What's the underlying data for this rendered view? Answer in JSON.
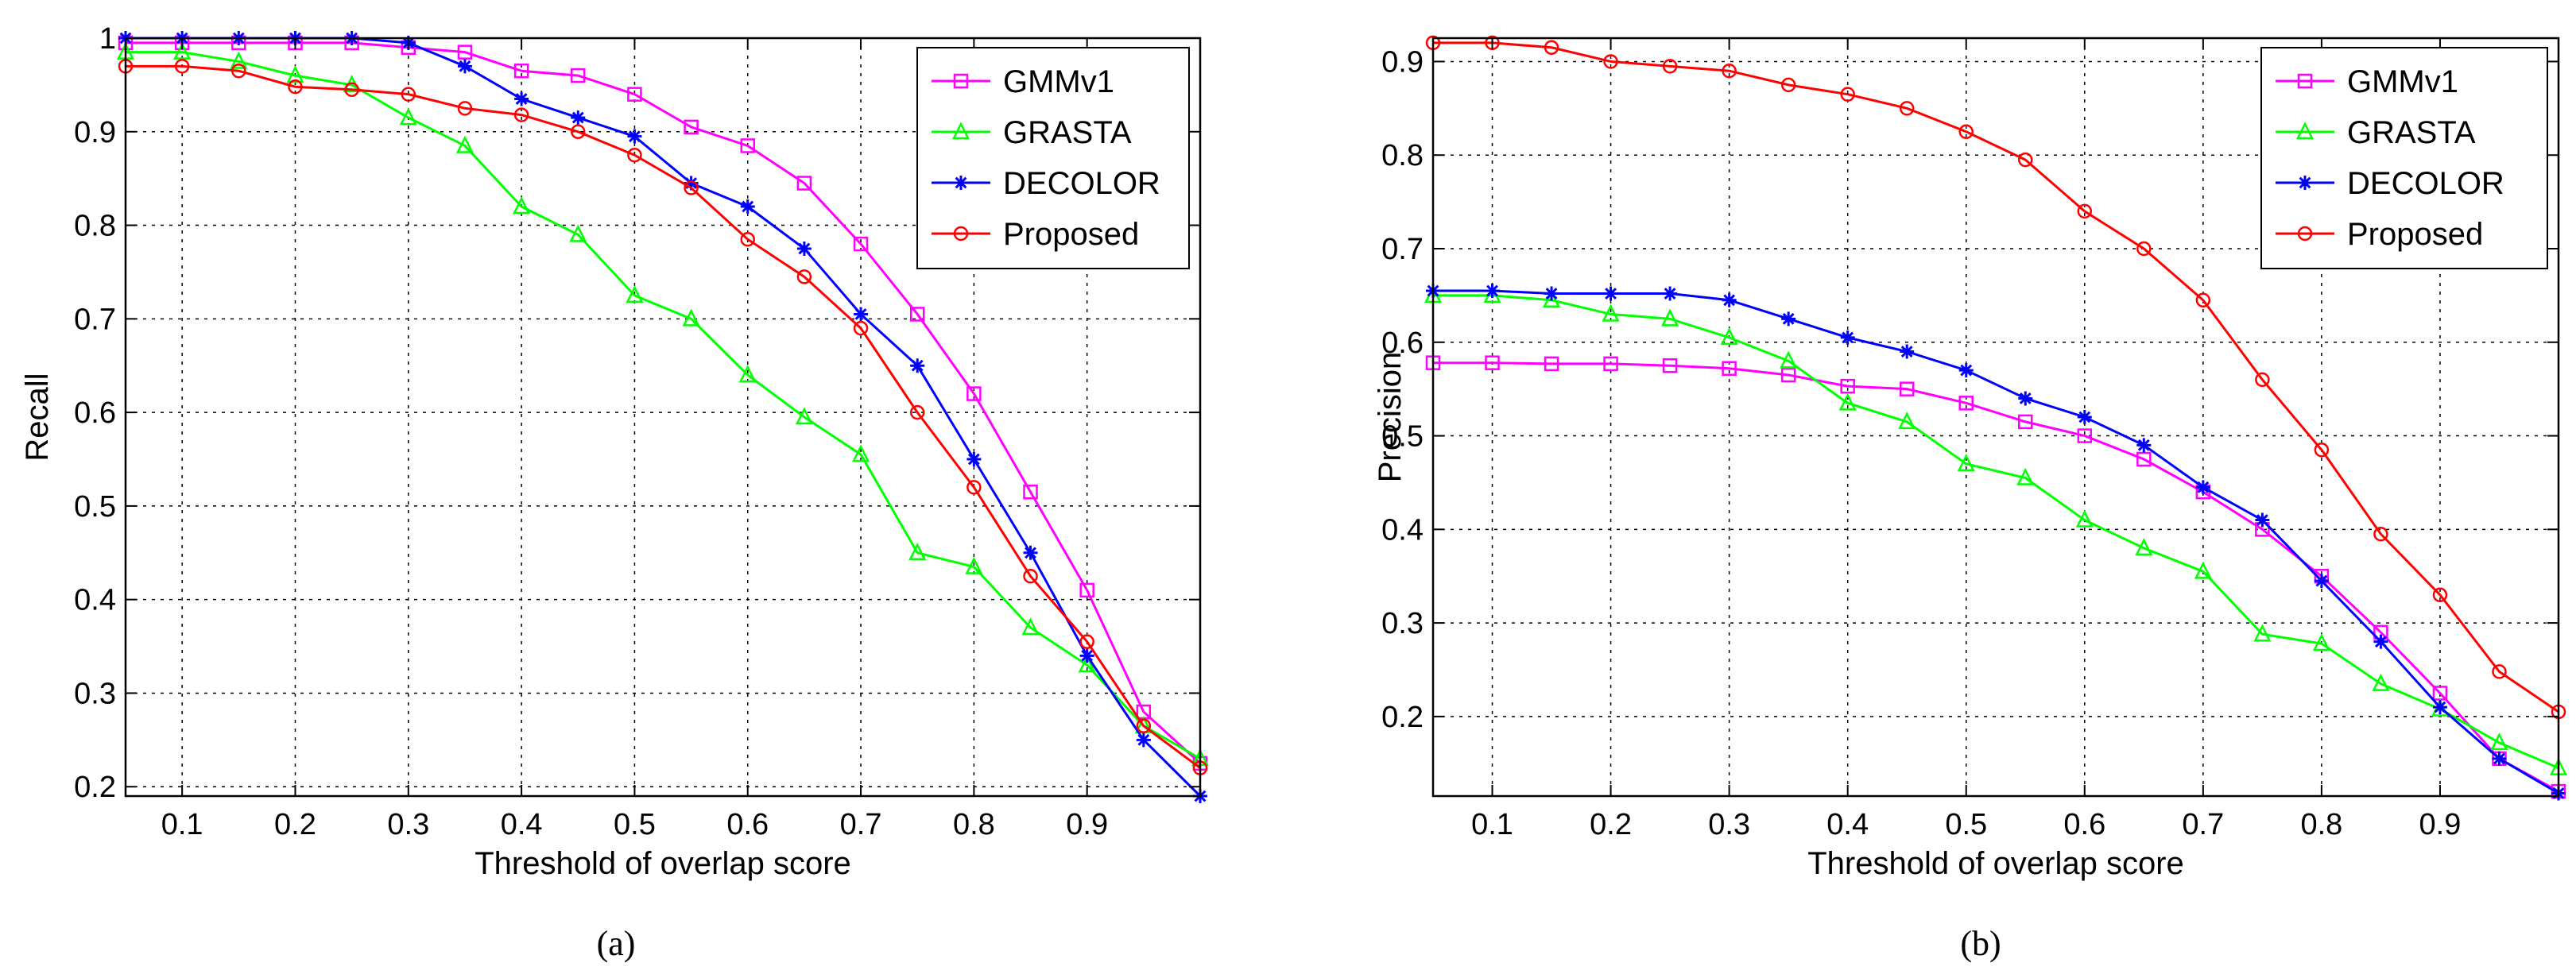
{
  "chart_data": [
    {
      "type": "line",
      "title": "",
      "caption": "(a)",
      "xlabel": "Threshold of overlap score",
      "ylabel": "Recall",
      "xlim": [
        0.05,
        1.0
      ],
      "ylim": [
        0.19,
        1.0
      ],
      "xticks": [
        0.1,
        0.2,
        0.3,
        0.4,
        0.5,
        0.6,
        0.7,
        0.8,
        0.9
      ],
      "xtick_labels": [
        "0.1",
        "0.2",
        "0.3",
        "0.4",
        "0.5",
        "0.6",
        "0.7",
        "0.8",
        "0.9"
      ],
      "yticks": [
        0.2,
        0.3,
        0.4,
        0.5,
        0.6,
        0.7,
        0.8,
        0.9,
        1.0
      ],
      "ytick_labels": [
        "0.2",
        "0.3",
        "0.4",
        "0.5",
        "0.6",
        "0.7",
        "0.8",
        "0.9",
        "1"
      ],
      "grid": true,
      "legend_position": "top-right",
      "x": [
        0.05,
        0.1,
        0.15,
        0.2,
        0.25,
        0.3,
        0.35,
        0.4,
        0.45,
        0.5,
        0.55,
        0.6,
        0.65,
        0.7,
        0.75,
        0.8,
        0.85,
        0.9,
        0.95,
        1.0
      ],
      "series": [
        {
          "name": "GMMv1",
          "color": "#ff00ff",
          "marker": "square",
          "values": [
            0.995,
            0.995,
            0.995,
            0.995,
            0.995,
            0.99,
            0.985,
            0.965,
            0.96,
            0.94,
            0.905,
            0.885,
            0.845,
            0.78,
            0.705,
            0.62,
            0.515,
            0.41,
            0.28,
            0.225
          ]
        },
        {
          "name": "GRASTA",
          "color": "#00ff00",
          "marker": "triangle",
          "values": [
            0.985,
            0.985,
            0.975,
            0.96,
            0.95,
            0.915,
            0.885,
            0.82,
            0.79,
            0.725,
            0.7,
            0.64,
            0.595,
            0.555,
            0.45,
            0.435,
            0.37,
            0.33,
            0.265,
            0.23
          ]
        },
        {
          "name": "DECOLOR",
          "color": "#0000ff",
          "marker": "star",
          "values": [
            1.0,
            1.0,
            1.0,
            1.0,
            1.0,
            0.995,
            0.97,
            0.935,
            0.915,
            0.895,
            0.845,
            0.82,
            0.775,
            0.705,
            0.65,
            0.55,
            0.45,
            0.34,
            0.25,
            0.19
          ]
        },
        {
          "name": "Proposed",
          "color": "#ff0000",
          "marker": "circle",
          "values": [
            0.97,
            0.97,
            0.965,
            0.948,
            0.945,
            0.94,
            0.925,
            0.918,
            0.9,
            0.875,
            0.84,
            0.785,
            0.745,
            0.69,
            0.6,
            0.52,
            0.425,
            0.355,
            0.265,
            0.22
          ]
        }
      ]
    },
    {
      "type": "line",
      "title": "",
      "caption": "(b)",
      "xlabel": "Threshold of overlap score",
      "ylabel": "Precision",
      "xlim": [
        0.05,
        1.0
      ],
      "ylim": [
        0.115,
        0.925
      ],
      "xticks": [
        0.1,
        0.2,
        0.3,
        0.4,
        0.5,
        0.6,
        0.7,
        0.8,
        0.9
      ],
      "xtick_labels": [
        "0.1",
        "0.2",
        "0.3",
        "0.4",
        "0.5",
        "0.6",
        "0.7",
        "0.8",
        "0.9"
      ],
      "yticks": [
        0.2,
        0.3,
        0.4,
        0.5,
        0.6,
        0.7,
        0.8,
        0.9
      ],
      "ytick_labels": [
        "0.2",
        "0.3",
        "0.4",
        "0.5",
        "0.6",
        "0.7",
        "0.8",
        "0.9"
      ],
      "grid": true,
      "legend_position": "top-right",
      "x": [
        0.05,
        0.1,
        0.15,
        0.2,
        0.25,
        0.3,
        0.35,
        0.4,
        0.45,
        0.5,
        0.55,
        0.6,
        0.65,
        0.7,
        0.75,
        0.8,
        0.85,
        0.9,
        0.95,
        1.0
      ],
      "series": [
        {
          "name": "GMMv1",
          "color": "#ff00ff",
          "marker": "square",
          "values": [
            0.578,
            0.578,
            0.577,
            0.577,
            0.575,
            0.572,
            0.565,
            0.553,
            0.55,
            0.535,
            0.515,
            0.5,
            0.475,
            0.44,
            0.4,
            0.35,
            0.29,
            0.225,
            0.155,
            0.12
          ]
        },
        {
          "name": "GRASTA",
          "color": "#00ff00",
          "marker": "triangle",
          "values": [
            0.65,
            0.65,
            0.645,
            0.63,
            0.625,
            0.605,
            0.58,
            0.535,
            0.515,
            0.47,
            0.455,
            0.41,
            0.38,
            0.355,
            0.288,
            0.278,
            0.235,
            0.208,
            0.172,
            0.145
          ]
        },
        {
          "name": "DECOLOR",
          "color": "#0000ff",
          "marker": "star",
          "values": [
            0.655,
            0.655,
            0.652,
            0.652,
            0.652,
            0.645,
            0.625,
            0.605,
            0.59,
            0.57,
            0.54,
            0.52,
            0.49,
            0.445,
            0.41,
            0.345,
            0.28,
            0.21,
            0.155,
            0.118
          ]
        },
        {
          "name": "Proposed",
          "color": "#ff0000",
          "marker": "circle",
          "values": [
            0.92,
            0.92,
            0.915,
            0.9,
            0.895,
            0.89,
            0.875,
            0.865,
            0.85,
            0.825,
            0.795,
            0.74,
            0.7,
            0.645,
            0.56,
            0.485,
            0.395,
            0.33,
            0.248,
            0.205
          ]
        }
      ]
    }
  ]
}
